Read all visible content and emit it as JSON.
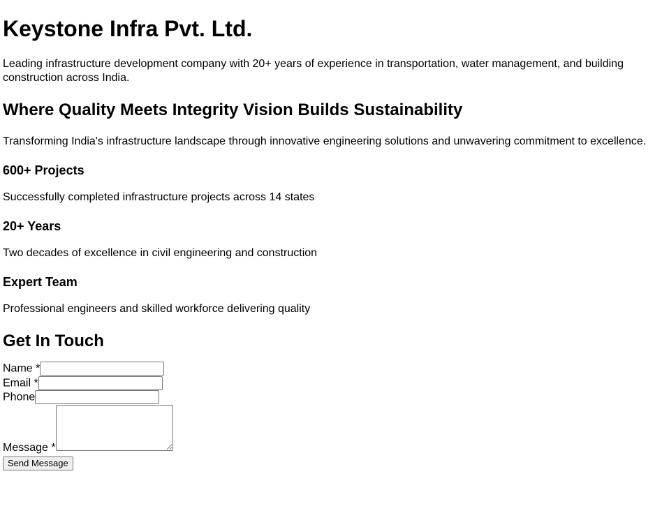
{
  "company": {
    "name": "Keystone Infra Pvt. Ltd.",
    "intro": "Leading infrastructure development company with 20+ years of experience in transportation, water management, and building construction across India."
  },
  "hero": {
    "heading": "Where Quality Meets Integrity Vision Builds Sustainability",
    "tagline": "Transforming India's infrastructure landscape through innovative engineering solutions and unwavering commitment to excellence."
  },
  "stats": [
    {
      "title": "600+ Projects",
      "description": "Successfully completed infrastructure projects across 14 states"
    },
    {
      "title": "20+ Years",
      "description": "Two decades of excellence in civil engineering and construction"
    },
    {
      "title": "Expert Team",
      "description": "Professional engineers and skilled workforce delivering quality"
    }
  ],
  "contact": {
    "heading": "Get In Touch",
    "name_label": "Name *",
    "name_value": "",
    "email_label": "Email *",
    "email_value": "",
    "phone_label": "Phone",
    "phone_value": "",
    "message_label": "Message *",
    "message_value": "",
    "submit_label": "Send Message"
  }
}
